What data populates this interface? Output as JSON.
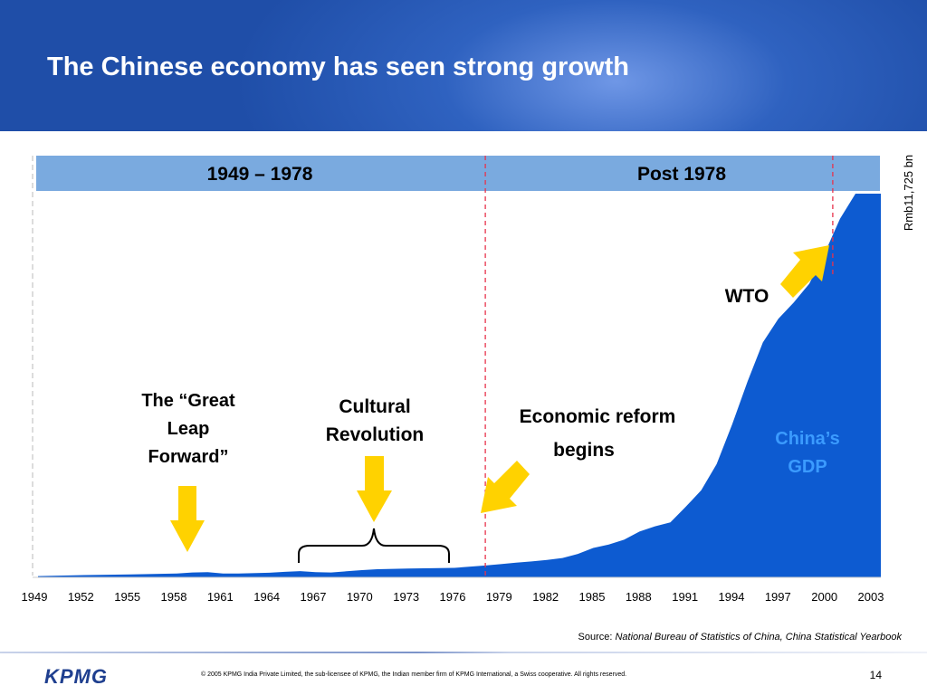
{
  "slide": {
    "title": "The Chinese economy has seen strong growth",
    "source_prefix": "Source: ",
    "source_reference": "National Bureau of Statistics of China, China Statistical Yearbook",
    "copyright": "© 2005 KPMG India Private Limited, the sub-licensee of KPMG, the Indian member firm of KPMG International, a Swiss cooperative. All rights reserved.",
    "page_number": "14",
    "logo_text": "KPMG"
  },
  "colors": {
    "header_blue": "#2f62c0",
    "band_blue": "#7aaadf",
    "area_blue": "#0d5bd1",
    "arrow_yellow": "#ffd200",
    "divider_red": "#e8324b",
    "gdp_label_blue": "#1f5fd0"
  },
  "chart_data": {
    "type": "area",
    "x_start": 1949,
    "x_end": 2003,
    "x_ticks": [
      "1949",
      "1952",
      "1955",
      "1958",
      "1961",
      "1964",
      "1967",
      "1970",
      "1973",
      "1976",
      "1979",
      "1982",
      "1985",
      "1988",
      "1991",
      "1994",
      "1997",
      "2000",
      "2003"
    ],
    "ylim": [
      0,
      11725
    ],
    "y_annotation": "Rmb11,725 bn",
    "series": [
      {
        "name": "China’s GDP",
        "x": [
          1949,
          1952,
          1955,
          1958,
          1959,
          1960,
          1961,
          1962,
          1964,
          1965,
          1966,
          1967,
          1968,
          1970,
          1971,
          1972,
          1973,
          1976,
          1978,
          1979,
          1980,
          1981,
          1982,
          1983,
          1984,
          1985,
          1986,
          1987,
          1988,
          1989,
          1990,
          1991,
          1992,
          1993,
          1994,
          1995,
          1996,
          1997,
          1998,
          1999,
          2000,
          2001,
          2002,
          2003
        ],
        "values": [
          40,
          70,
          90,
          120,
          150,
          160,
          120,
          115,
          140,
          170,
          190,
          160,
          150,
          220,
          250,
          260,
          270,
          290,
          362,
          403,
          452,
          486,
          530,
          593,
          717,
          900,
          1000,
          1150,
          1400,
          1560,
          1680,
          2160,
          2660,
          3460,
          4670,
          5980,
          7180,
          7900,
          8400,
          8970,
          9900,
          10960,
          11725,
          11725
        ]
      }
    ],
    "periods": [
      {
        "label": "1949 – 1978",
        "from": 1949,
        "to": 1978
      },
      {
        "label": "Post 1978",
        "from": 1978,
        "to": 2003
      }
    ],
    "dividers": [
      1978,
      2001
    ],
    "annotations": [
      {
        "id": "great-leap",
        "lines": [
          "The “Great",
          "Leap",
          "Forward”"
        ],
        "year": 1958
      },
      {
        "id": "cultural-revolution",
        "lines": [
          "Cultural",
          "Revolution"
        ],
        "year": 1967
      },
      {
        "id": "economic-reform",
        "lines": [
          "Economic reform",
          "begins"
        ],
        "year": 1978
      },
      {
        "id": "wto",
        "lines": [
          "WTO"
        ],
        "year": 2001
      },
      {
        "id": "gdp-label",
        "lines": [
          "China’s",
          "GDP"
        ],
        "year": 1998
      }
    ]
  }
}
